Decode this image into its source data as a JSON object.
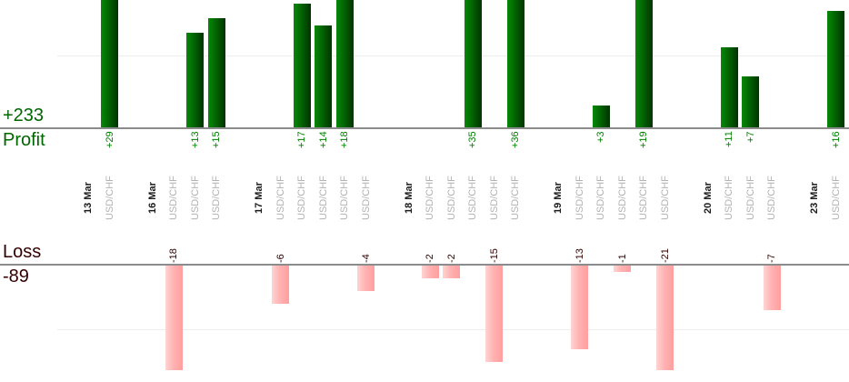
{
  "summary": {
    "profit_total_label": "+233",
    "profit_axis_label": "Profit",
    "loss_axis_label": "Loss",
    "loss_total_label": "-89"
  },
  "colors": {
    "profit_text": "#006600",
    "profit_value_text": "#008000",
    "profit_bar_start": "#088908",
    "profit_bar_mid": "#026002",
    "profit_bar_end": "#013201",
    "loss_text": "#330000",
    "loss_value_text": "#330000",
    "loss_bar_start": "#ffd4d4",
    "loss_bar_mid": "#ffb3b3",
    "loss_bar_end": "#ff9e9e",
    "axis_line": "#8c8c8c",
    "gridline": "#ededed",
    "date_label_text": "#1a1a1a",
    "symbol_label_text": "#b3b3b3"
  },
  "chart_data": {
    "type": "bar",
    "title": "",
    "ylabel_top": "Profit",
    "ylabel_bottom": "Loss",
    "profit_total": 233,
    "loss_total": -89,
    "legend": "none",
    "gridlines": {
      "profit_value": 10,
      "loss_value": -10
    },
    "x_groups": [
      {
        "date": "13 Mar",
        "trades": [
          {
            "symbol": "USD/CHF",
            "value": 29,
            "label": "+29"
          }
        ]
      },
      {
        "date": "16 Mar",
        "trades": [
          {
            "symbol": "USD/CHF",
            "value": -18,
            "label": "-18"
          },
          {
            "symbol": "USD/CHF",
            "value": 13,
            "label": "+13"
          },
          {
            "symbol": "USD/CHF",
            "value": 15,
            "label": "+15"
          }
        ]
      },
      {
        "date": "17 Mar",
        "trades": [
          {
            "symbol": "USD/CHF",
            "value": -6,
            "label": "-6"
          },
          {
            "symbol": "USD/CHF",
            "value": 17,
            "label": "+17"
          },
          {
            "symbol": "USD/CHF",
            "value": 14,
            "label": "+14"
          },
          {
            "symbol": "USD/CHF",
            "value": 18,
            "label": "+18"
          },
          {
            "symbol": "USD/CHF",
            "value": -4,
            "label": "-4"
          }
        ]
      },
      {
        "date": "18 Mar",
        "trades": [
          {
            "symbol": "USD/CHF",
            "value": -2,
            "label": "-2"
          },
          {
            "symbol": "USD/CHF",
            "value": -2,
            "label": "-2"
          },
          {
            "symbol": "USD/CHF",
            "value": 35,
            "label": "+35"
          },
          {
            "symbol": "USD/CHF",
            "value": -15,
            "label": "-15"
          },
          {
            "symbol": "USD/CHF",
            "value": 36,
            "label": "+36"
          }
        ]
      },
      {
        "date": "19 Mar",
        "trades": [
          {
            "symbol": "USD/CHF",
            "value": -13,
            "label": "-13"
          },
          {
            "symbol": "USD/CHF",
            "value": 3,
            "label": "+3"
          },
          {
            "symbol": "USD/CHF",
            "value": -1,
            "label": "-1"
          },
          {
            "symbol": "USD/CHF",
            "value": 19,
            "label": "+19"
          },
          {
            "symbol": "USD/CHF",
            "value": -21,
            "label": "-21"
          }
        ]
      },
      {
        "date": "20 Mar",
        "trades": [
          {
            "symbol": "USD/CHF",
            "value": 11,
            "label": "+11"
          },
          {
            "symbol": "USD/CHF",
            "value": 7,
            "label": "+7"
          },
          {
            "symbol": "USD/CHF",
            "value": -7,
            "label": "-7"
          }
        ]
      },
      {
        "date": "23 Mar",
        "trades": [
          {
            "symbol": "USD/CHF",
            "value": 16,
            "label": "+16"
          }
        ]
      }
    ]
  }
}
